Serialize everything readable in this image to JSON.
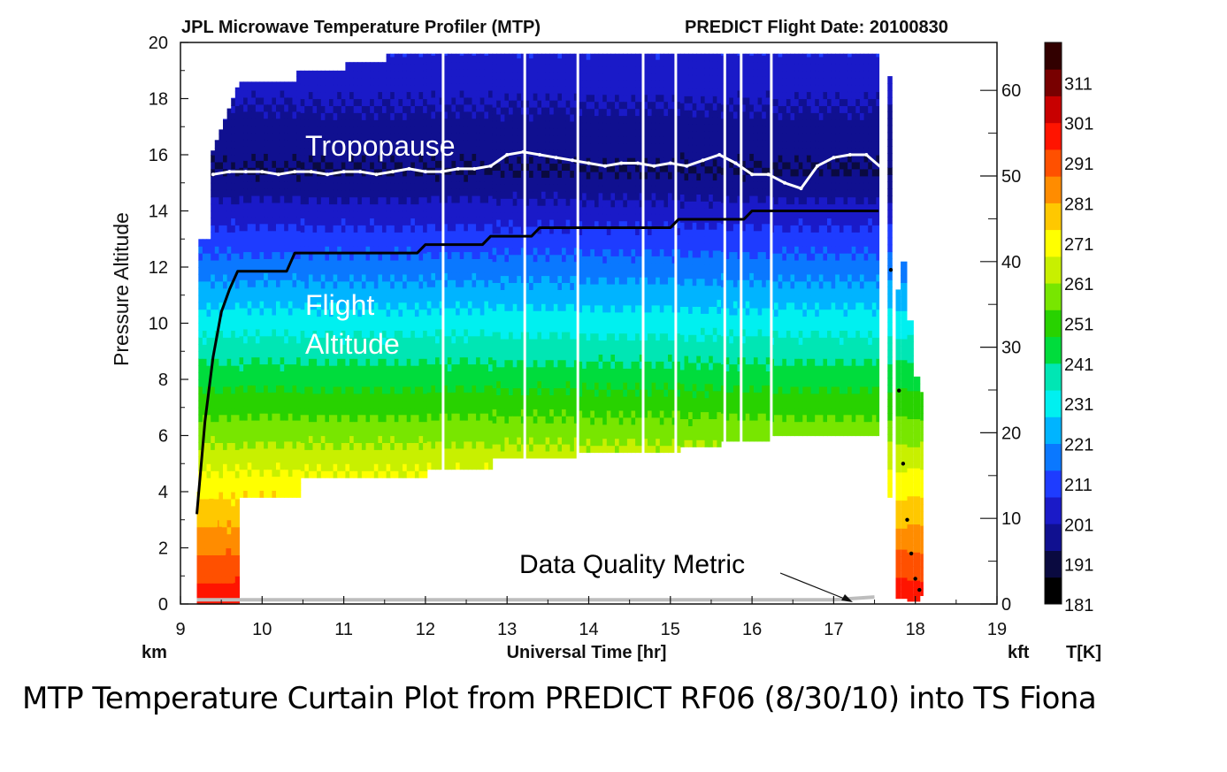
{
  "header": {
    "left": "JPL Microwave Temperature Profiler (MTP)",
    "right": "PREDICT  Flight Date: 20100830"
  },
  "caption": "MTP Temperature Curtain Plot from PREDICT RF06 (8/30/10) into TS Fiona",
  "chart_data": {
    "type": "heatmap",
    "xlabel": "Universal Time [hr]",
    "ylabel": "Pressure Altitude",
    "x_unit_label": "km",
    "y2_unit_label": "kft",
    "colorbar_label": "T[K]",
    "xlim": [
      9,
      19
    ],
    "ylim": [
      0,
      20
    ],
    "y2lim": [
      0,
      65.6
    ],
    "x_ticks": [
      9,
      10,
      11,
      12,
      13,
      14,
      15,
      16,
      17,
      18,
      19
    ],
    "y_ticks": [
      0,
      2,
      4,
      6,
      8,
      10,
      12,
      14,
      16,
      18,
      20
    ],
    "y2_ticks": [
      0,
      10,
      20,
      30,
      40,
      50,
      60
    ],
    "colorbar": {
      "range": [
        181,
        321
      ],
      "ticks": [
        181,
        191,
        201,
        211,
        221,
        231,
        241,
        251,
        261,
        271,
        281,
        291,
        301,
        311
      ],
      "colors": [
        "#000000",
        "#0a0a40",
        "#101090",
        "#1a1ac8",
        "#1e3cff",
        "#0a78ff",
        "#00b4ff",
        "#00f0f0",
        "#00e6b4",
        "#00dc3c",
        "#28d200",
        "#78e600",
        "#c8f000",
        "#ffff00",
        "#ffc800",
        "#ff8c00",
        "#ff5000",
        "#ff1400",
        "#c80000",
        "#780000",
        "#320000"
      ]
    },
    "grid": false,
    "annotations": {
      "tropopause": "Tropopause",
      "flight_altitude": "Flight\nAltitude",
      "dqm": "Data Quality Metric"
    },
    "series": [
      {
        "name": "Flight Altitude",
        "x": [
          9.2,
          9.3,
          9.4,
          9.5,
          9.6,
          9.7,
          10.3,
          10.4,
          11.9,
          12.0,
          12.7,
          12.8,
          13.3,
          13.4,
          15.0,
          15.1,
          15.9,
          16.0,
          17.55
        ],
        "y": [
          3.2,
          6.5,
          8.8,
          10.4,
          11.2,
          11.85,
          11.85,
          12.5,
          12.5,
          12.8,
          12.8,
          13.1,
          13.1,
          13.4,
          13.4,
          13.7,
          13.7,
          14.0,
          14.0
        ]
      },
      {
        "name": "Flight Altitude (descent)",
        "x": [
          17.7,
          17.8,
          17.85,
          17.9,
          17.95,
          18.0,
          18.05
        ],
        "y": [
          11.9,
          7.6,
          5.0,
          3.0,
          1.8,
          0.9,
          0.5
        ]
      },
      {
        "name": "Tropopause",
        "x": [
          9.4,
          9.6,
          9.8,
          10.0,
          10.2,
          10.4,
          10.6,
          10.8,
          11.0,
          11.2,
          11.4,
          11.6,
          11.8,
          12.0,
          12.2,
          12.4,
          12.6,
          12.8,
          13.0,
          13.2,
          13.4,
          13.6,
          13.8,
          14.0,
          14.2,
          14.4,
          14.6,
          14.8,
          15.0,
          15.2,
          15.4,
          15.6,
          15.8,
          16.0,
          16.2,
          16.4,
          16.6,
          16.8,
          17.0,
          17.2,
          17.4,
          17.6
        ],
        "y": [
          15.3,
          15.4,
          15.4,
          15.4,
          15.3,
          15.4,
          15.4,
          15.3,
          15.4,
          15.4,
          15.3,
          15.4,
          15.5,
          15.4,
          15.4,
          15.5,
          15.5,
          15.6,
          16.0,
          16.1,
          16.0,
          15.9,
          15.8,
          15.7,
          15.6,
          15.7,
          15.7,
          15.6,
          15.7,
          15.6,
          15.8,
          16.0,
          15.7,
          15.3,
          15.3,
          15.0,
          14.8,
          15.6,
          15.9,
          16.0,
          16.0,
          15.5
        ]
      },
      {
        "name": "Data Quality Metric",
        "x": [
          9.2,
          10.0,
          11.0,
          12.0,
          13.0,
          14.0,
          15.0,
          16.0,
          17.0,
          17.5
        ],
        "y": [
          0.15,
          0.15,
          0.15,
          0.15,
          0.15,
          0.15,
          0.15,
          0.15,
          0.15,
          0.25
        ]
      }
    ]
  }
}
